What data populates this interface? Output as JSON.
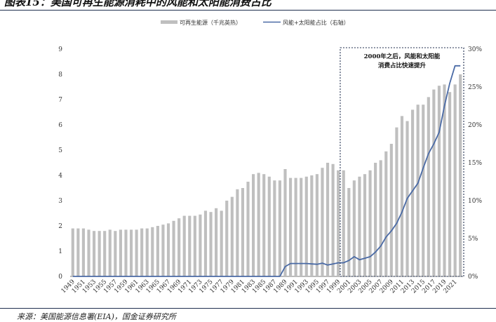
{
  "figure": {
    "title": "图表15：美国可再生能源消耗中的风能和太阳能消费占比",
    "source": "来源：美国能源信息署(EIA)，国金证券研究所"
  },
  "chart_data": {
    "type": "bar",
    "title": "美国可再生能源消耗中的风能和太阳能消费占比",
    "legend_position": "top-center",
    "categories": [
      1949,
      1950,
      1951,
      1952,
      1953,
      1954,
      1955,
      1956,
      1957,
      1958,
      1959,
      1960,
      1961,
      1962,
      1963,
      1964,
      1965,
      1966,
      1967,
      1968,
      1969,
      1970,
      1971,
      1972,
      1973,
      1974,
      1975,
      1976,
      1977,
      1978,
      1979,
      1980,
      1981,
      1982,
      1983,
      1984,
      1985,
      1986,
      1987,
      1988,
      1989,
      1990,
      1991,
      1992,
      1993,
      1994,
      1995,
      1996,
      1997,
      1998,
      1999,
      2000,
      2001,
      2002,
      2003,
      2004,
      2005,
      2006,
      2007,
      2008,
      2009,
      2010,
      2011,
      2012,
      2013,
      2014,
      2015,
      2016,
      2017,
      2018,
      2019,
      2020,
      2021,
      2022
    ],
    "x_tick_labels": [
      "1949",
      "1951",
      "1953",
      "1955",
      "1957",
      "1959",
      "1961",
      "1963",
      "1965",
      "1967",
      "1969",
      "1971",
      "1973",
      "1975",
      "1977",
      "1979",
      "1981",
      "1983",
      "1985",
      "1987",
      "1989",
      "1991",
      "1993",
      "1995",
      "1997",
      "1999",
      "2001",
      "2003",
      "2005",
      "2007",
      "2009",
      "2011",
      "2013",
      "2015",
      "2017",
      "2019",
      "2021"
    ],
    "series": [
      {
        "name": "可再生能源（千兆英热）",
        "type": "bar",
        "axis": "left",
        "color": "#bfbfbf",
        "values": [
          1.9,
          1.9,
          1.9,
          1.85,
          1.8,
          1.8,
          1.8,
          1.85,
          1.8,
          1.85,
          1.85,
          1.85,
          1.85,
          1.9,
          1.9,
          1.95,
          2.0,
          2.05,
          2.1,
          2.2,
          2.3,
          2.4,
          2.4,
          2.4,
          2.45,
          2.6,
          2.55,
          2.7,
          2.6,
          3.0,
          3.15,
          3.45,
          3.5,
          3.75,
          4.05,
          4.1,
          4.05,
          3.95,
          3.8,
          3.8,
          4.25,
          3.9,
          3.9,
          3.9,
          3.95,
          4.0,
          4.05,
          4.3,
          4.5,
          4.45,
          4.2,
          4.2,
          3.5,
          3.8,
          3.95,
          4.05,
          4.2,
          4.5,
          4.6,
          4.95,
          5.25,
          5.9,
          6.35,
          6.15,
          6.6,
          6.8,
          6.8,
          7.1,
          7.4,
          7.55,
          7.6,
          7.3,
          7.6,
          8.0
        ]
      },
      {
        "name": "风能+太阳能占比（右轴）",
        "type": "line",
        "axis": "right",
        "color": "#4a6aa5",
        "values": [
          0,
          0,
          0,
          0,
          0,
          0,
          0,
          0,
          0,
          0,
          0,
          0,
          0,
          0,
          0,
          0,
          0,
          0,
          0,
          0,
          0,
          0,
          0,
          0,
          0,
          0,
          0,
          0,
          0,
          0,
          0,
          0,
          0,
          0,
          0,
          0,
          0,
          0,
          0,
          0,
          1.3,
          1.7,
          1.7,
          1.7,
          1.7,
          1.65,
          1.6,
          1.75,
          1.5,
          1.65,
          1.8,
          1.8,
          2.1,
          2.6,
          2.2,
          2.4,
          2.6,
          3.2,
          4.0,
          5.2,
          6.0,
          7.0,
          8.5,
          10.3,
          11.3,
          12.3,
          14.3,
          16.2,
          17.5,
          19.0,
          22.5,
          25.5,
          27.8,
          27.8
        ]
      }
    ],
    "y_left": {
      "min": 0,
      "max": 9,
      "ticks": [
        "0",
        "1",
        "2",
        "3",
        "4",
        "5",
        "6",
        "7",
        "8",
        "9"
      ]
    },
    "y_right": {
      "min": 0,
      "max": 30,
      "ticks": [
        "0%",
        "5%",
        "10%",
        "15%",
        "20%",
        "25%",
        "30%"
      ]
    },
    "annotation": {
      "text_lines": [
        "2000年之后，风能和太阳能",
        "消费占比快速提升"
      ],
      "from_year": 2000,
      "to_year": 2022
    }
  }
}
